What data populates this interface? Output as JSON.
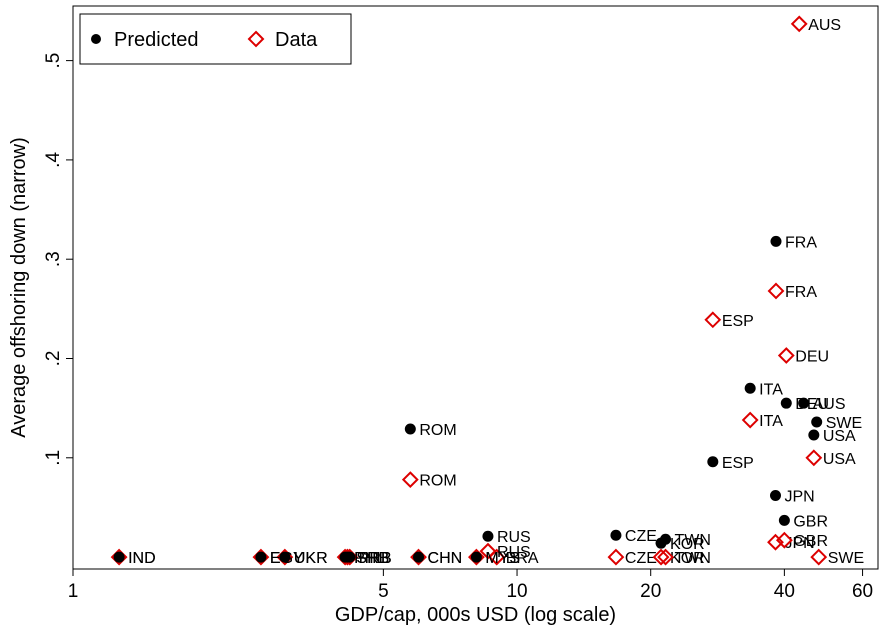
{
  "chart_data": {
    "type": "scatter",
    "xlabel": "GDP/cap, 000s USD (log scale)",
    "ylabel": "Average offshoring down (narrow)",
    "x_scale": "log",
    "xlim": [
      1,
      65
    ],
    "ylim": [
      -0.012,
      0.555
    ],
    "x_ticks": [
      1,
      5,
      10,
      20,
      40,
      60
    ],
    "y_ticks": [
      0.1,
      0.2,
      0.3,
      0.4,
      0.5
    ],
    "x_tick_labels": [
      "1",
      "5",
      "10",
      "20",
      "40",
      "60"
    ],
    "y_tick_labels": [
      ".1",
      ".2",
      ".3",
      ".4",
      ".5"
    ],
    "grid": false,
    "legend_position": "top-left",
    "series": [
      {
        "name": "Predicted",
        "marker": "filled-circle",
        "color": "#000000",
        "points": [
          {
            "label": "IND",
            "x": 1.27,
            "y": 0.0
          },
          {
            "label": "EGY",
            "x": 2.65,
            "y": 0.0
          },
          {
            "label": "UKR",
            "x": 3.0,
            "y": 0.0
          },
          {
            "label": "PHL",
            "x": 4.1,
            "y": 0.0
          },
          {
            "label": "SRB",
            "x": 4.15,
            "y": 0.0
          },
          {
            "label": "PRB",
            "x": 4.2,
            "y": 0.0
          },
          {
            "label": "CHN",
            "x": 6.0,
            "y": 0.0
          },
          {
            "label": "MYS",
            "x": 8.1,
            "y": 0.0
          },
          {
            "label": "ROM",
            "x": 5.75,
            "y": 0.129
          },
          {
            "label": "RUS",
            "x": 8.6,
            "y": 0.021
          },
          {
            "label": "CZE",
            "x": 16.7,
            "y": 0.022
          },
          {
            "label": "TWN",
            "x": 21.6,
            "y": 0.018
          },
          {
            "label": "KOR",
            "x": 21.1,
            "y": 0.014
          },
          {
            "label": "ESP",
            "x": 27.6,
            "y": 0.096
          },
          {
            "label": "ITA",
            "x": 33.5,
            "y": 0.17
          },
          {
            "label": "DEU",
            "x": 40.4,
            "y": 0.155
          },
          {
            "label": "AUS",
            "x": 44.2,
            "y": 0.155
          },
          {
            "label": "FRA",
            "x": 38.3,
            "y": 0.318
          },
          {
            "label": "SWE",
            "x": 47.3,
            "y": 0.136
          },
          {
            "label": "USA",
            "x": 46.6,
            "y": 0.123
          },
          {
            "label": "JPN",
            "x": 38.2,
            "y": 0.062
          },
          {
            "label": "GBR",
            "x": 40.0,
            "y": 0.037
          }
        ]
      },
      {
        "name": "Data",
        "marker": "hollow-diamond",
        "color": "#dd0000",
        "points": [
          {
            "label": "IND",
            "x": 1.27,
            "y": 0.0
          },
          {
            "label": "EGY",
            "x": 2.65,
            "y": 0.0
          },
          {
            "label": "UKR",
            "x": 3.0,
            "y": 0.0
          },
          {
            "label": "PHL",
            "x": 4.1,
            "y": 0.0
          },
          {
            "label": "SRB",
            "x": 4.15,
            "y": 0.0
          },
          {
            "label": "PRB",
            "x": 4.2,
            "y": 0.0
          },
          {
            "label": "CHN",
            "x": 6.0,
            "y": 0.0
          },
          {
            "label": "MYS",
            "x": 8.1,
            "y": 0.0
          },
          {
            "label": "BRA",
            "x": 9.0,
            "y": 0.0
          },
          {
            "label": "RUS",
            "x": 8.6,
            "y": 0.006
          },
          {
            "label": "CZE",
            "x": 16.7,
            "y": 0.0
          },
          {
            "label": "KOR",
            "x": 21.1,
            "y": 0.0
          },
          {
            "label": "TWN",
            "x": 21.6,
            "y": 0.0
          },
          {
            "label": "ROM",
            "x": 5.75,
            "y": 0.078
          },
          {
            "label": "ESP",
            "x": 27.6,
            "y": 0.239
          },
          {
            "label": "FRA",
            "x": 38.3,
            "y": 0.268
          },
          {
            "label": "DEU",
            "x": 40.4,
            "y": 0.203
          },
          {
            "label": "ITA",
            "x": 33.5,
            "y": 0.138
          },
          {
            "label": "USA",
            "x": 46.6,
            "y": 0.1
          },
          {
            "label": "AUS",
            "x": 43.2,
            "y": 0.537
          },
          {
            "label": "JPN",
            "x": 38.2,
            "y": 0.015
          },
          {
            "label": "GBR",
            "x": 40.0,
            "y": 0.017
          },
          {
            "label": "SWE",
            "x": 47.8,
            "y": 0.0
          }
        ]
      }
    ]
  }
}
